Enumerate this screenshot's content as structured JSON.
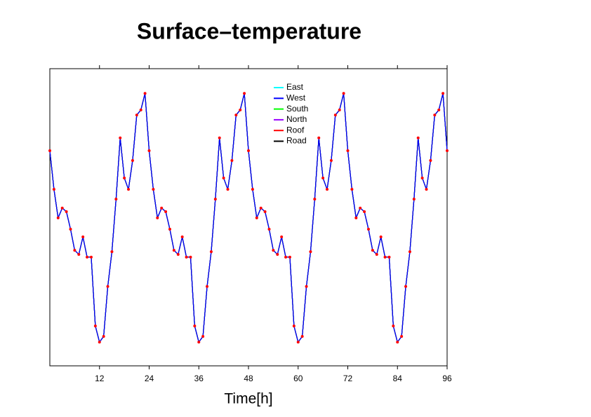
{
  "chart_data": {
    "type": "line",
    "title": "Surface–temperature",
    "x_label": "Time[h]",
    "xlim": [
      0,
      96
    ],
    "xticks": [
      12,
      24,
      36,
      48,
      60,
      72,
      84,
      96
    ],
    "ylim": [
      0,
      100
    ],
    "x": [
      0,
      1,
      2,
      3,
      4,
      5,
      6,
      7,
      8,
      9,
      10,
      11,
      12,
      13,
      14,
      15,
      16,
      17,
      18,
      19,
      20,
      21,
      22,
      23,
      24,
      25,
      26,
      27,
      28,
      29,
      30,
      31,
      32,
      33,
      34,
      35,
      36,
      37,
      38,
      39,
      40,
      41,
      42,
      43,
      44,
      45,
      46,
      47,
      48,
      49,
      50,
      51,
      52,
      53,
      54,
      55,
      56,
      57,
      58,
      59,
      60,
      61,
      62,
      63,
      64,
      65,
      66,
      67,
      68,
      69,
      70,
      71,
      72,
      73,
      74,
      75,
      76,
      77,
      78,
      79,
      80,
      81,
      82,
      83,
      84,
      85,
      86,
      87,
      88,
      89,
      90,
      91,
      92,
      93,
      94,
      95,
      96
    ],
    "series": [
      {
        "name": "East",
        "color": "#00ffff",
        "values": [
          72.4,
          59.4,
          49.8,
          53.1,
          51.9,
          46.0,
          38.9,
          37.5,
          43.4,
          36.6,
          36.6,
          13.4,
          8.0,
          9.9,
          26.7,
          38.4,
          56.1,
          76.7,
          63.2,
          59.4,
          69.1,
          84.4,
          86.1,
          91.7,
          72.4,
          59.4,
          49.8,
          53.1,
          51.9,
          46.0,
          38.9,
          37.5,
          43.4,
          36.6,
          36.6,
          13.4,
          8.0,
          9.9,
          26.7,
          38.4,
          56.1,
          76.7,
          63.2,
          59.4,
          69.1,
          84.4,
          86.1,
          91.7,
          72.4,
          59.4,
          49.8,
          53.1,
          51.9,
          46.0,
          38.9,
          37.5,
          43.4,
          36.6,
          36.6,
          13.4,
          8.0,
          9.9,
          26.7,
          38.4,
          56.1,
          76.7,
          63.2,
          59.4,
          69.1,
          84.4,
          86.1,
          91.7,
          72.4,
          59.4,
          49.8,
          53.1,
          51.9,
          46.0,
          38.9,
          37.5,
          43.4,
          36.6,
          36.6,
          13.4,
          8.0,
          9.9,
          26.7,
          38.4,
          56.1,
          76.7,
          63.2,
          59.4,
          69.1,
          84.4,
          86.1,
          91.7,
          72.4
        ]
      },
      {
        "name": "West",
        "color": "#0000ff",
        "values": [
          72.4,
          59.4,
          49.8,
          53.1,
          51.9,
          46.0,
          38.9,
          37.5,
          43.4,
          36.6,
          36.6,
          13.4,
          8.0,
          9.9,
          26.7,
          38.4,
          56.1,
          76.7,
          63.2,
          59.4,
          69.1,
          84.4,
          86.1,
          91.7,
          72.4,
          59.4,
          49.8,
          53.1,
          51.9,
          46.0,
          38.9,
          37.5,
          43.4,
          36.6,
          36.6,
          13.4,
          8.0,
          9.9,
          26.7,
          38.4,
          56.1,
          76.7,
          63.2,
          59.4,
          69.1,
          84.4,
          86.1,
          91.7,
          72.4,
          59.4,
          49.8,
          53.1,
          51.9,
          46.0,
          38.9,
          37.5,
          43.4,
          36.6,
          36.6,
          13.4,
          8.0,
          9.9,
          26.7,
          38.4,
          56.1,
          76.7,
          63.2,
          59.4,
          69.1,
          84.4,
          86.1,
          91.7,
          72.4,
          59.4,
          49.8,
          53.1,
          51.9,
          46.0,
          38.9,
          37.5,
          43.4,
          36.6,
          36.6,
          13.4,
          8.0,
          9.9,
          26.7,
          38.4,
          56.1,
          76.7,
          63.2,
          59.4,
          69.1,
          84.4,
          86.1,
          91.7,
          72.4
        ]
      },
      {
        "name": "South",
        "color": "#00ff00",
        "values": [
          72.4,
          59.4,
          49.8,
          53.1,
          51.9,
          46.0,
          38.9,
          37.5,
          43.4,
          36.6,
          36.6,
          13.4,
          8.0,
          9.9,
          26.7,
          38.4,
          56.1,
          76.7,
          63.2,
          59.4,
          69.1,
          84.4,
          86.1,
          91.7,
          72.4,
          59.4,
          49.8,
          53.1,
          51.9,
          46.0,
          38.9,
          37.5,
          43.4,
          36.6,
          36.6,
          13.4,
          8.0,
          9.9,
          26.7,
          38.4,
          56.1,
          76.7,
          63.2,
          59.4,
          69.1,
          84.4,
          86.1,
          91.7,
          72.4,
          59.4,
          49.8,
          53.1,
          51.9,
          46.0,
          38.9,
          37.5,
          43.4,
          36.6,
          36.6,
          13.4,
          8.0,
          9.9,
          26.7,
          38.4,
          56.1,
          76.7,
          63.2,
          59.4,
          69.1,
          84.4,
          86.1,
          91.7,
          72.4,
          59.4,
          49.8,
          53.1,
          51.9,
          46.0,
          38.9,
          37.5,
          43.4,
          36.6,
          36.6,
          13.4,
          8.0,
          9.9,
          26.7,
          38.4,
          56.1,
          76.7,
          63.2,
          59.4,
          69.1,
          84.4,
          86.1,
          91.7,
          72.4
        ]
      },
      {
        "name": "North",
        "color": "#9900ff",
        "values": [
          72.4,
          59.4,
          49.8,
          53.1,
          51.9,
          46.0,
          38.9,
          37.5,
          43.4,
          36.6,
          36.6,
          13.4,
          8.0,
          9.9,
          26.7,
          38.4,
          56.1,
          76.7,
          63.2,
          59.4,
          69.1,
          84.4,
          86.1,
          91.7,
          72.4,
          59.4,
          49.8,
          53.1,
          51.9,
          46.0,
          38.9,
          37.5,
          43.4,
          36.6,
          36.6,
          13.4,
          8.0,
          9.9,
          26.7,
          38.4,
          56.1,
          76.7,
          63.2,
          59.4,
          69.1,
          84.4,
          86.1,
          91.7,
          72.4,
          59.4,
          49.8,
          53.1,
          51.9,
          46.0,
          38.9,
          37.5,
          43.4,
          36.6,
          36.6,
          13.4,
          8.0,
          9.9,
          26.7,
          38.4,
          56.1,
          76.7,
          63.2,
          59.4,
          69.1,
          84.4,
          86.1,
          91.7,
          72.4,
          59.4,
          49.8,
          53.1,
          51.9,
          46.0,
          38.9,
          37.5,
          43.4,
          36.6,
          36.6,
          13.4,
          8.0,
          9.9,
          26.7,
          38.4,
          56.1,
          76.7,
          63.2,
          59.4,
          69.1,
          84.4,
          86.1,
          91.7,
          72.4
        ]
      },
      {
        "name": "Roof",
        "color": "#ff0000",
        "style": "markers",
        "values": [
          72.4,
          59.4,
          49.8,
          53.1,
          51.9,
          46.0,
          38.9,
          37.5,
          43.4,
          36.6,
          36.6,
          13.4,
          8.0,
          9.9,
          26.7,
          38.4,
          56.1,
          76.7,
          63.2,
          59.4,
          69.1,
          84.4,
          86.1,
          91.7,
          72.4,
          59.4,
          49.8,
          53.1,
          51.9,
          46.0,
          38.9,
          37.5,
          43.4,
          36.6,
          36.6,
          13.4,
          8.0,
          9.9,
          26.7,
          38.4,
          56.1,
          76.7,
          63.2,
          59.4,
          69.1,
          84.4,
          86.1,
          91.7,
          72.4,
          59.4,
          49.8,
          53.1,
          51.9,
          46.0,
          38.9,
          37.5,
          43.4,
          36.6,
          36.6,
          13.4,
          8.0,
          9.9,
          26.7,
          38.4,
          56.1,
          76.7,
          63.2,
          59.4,
          69.1,
          84.4,
          86.1,
          91.7,
          72.4,
          59.4,
          49.8,
          53.1,
          51.9,
          46.0,
          38.9,
          37.5,
          43.4,
          36.6,
          36.6,
          13.4,
          8.0,
          9.9,
          26.7,
          38.4,
          56.1,
          76.7,
          63.2,
          59.4,
          69.1,
          84.4,
          86.1,
          91.7,
          72.4
        ]
      },
      {
        "name": "Road",
        "color": "#000000",
        "values": [
          72.4,
          59.4,
          49.8,
          53.1,
          51.9,
          46.0,
          38.9,
          37.5,
          43.4,
          36.6,
          36.6,
          13.4,
          8.0,
          9.9,
          26.7,
          38.4,
          56.1,
          76.7,
          63.2,
          59.4,
          69.1,
          84.4,
          86.1,
          91.7,
          72.4,
          59.4,
          49.8,
          53.1,
          51.9,
          46.0,
          38.9,
          37.5,
          43.4,
          36.6,
          36.6,
          13.4,
          8.0,
          9.9,
          26.7,
          38.4,
          56.1,
          76.7,
          63.2,
          59.4,
          69.1,
          84.4,
          86.1,
          91.7,
          72.4,
          59.4,
          49.8,
          53.1,
          51.9,
          46.0,
          38.9,
          37.5,
          43.4,
          36.6,
          36.6,
          13.4,
          8.0,
          9.9,
          26.7,
          38.4,
          56.1,
          76.7,
          63.2,
          59.4,
          69.1,
          84.4,
          86.1,
          91.7,
          72.4,
          59.4,
          49.8,
          53.1,
          51.9,
          46.0,
          38.9,
          37.5,
          43.4,
          36.6,
          36.6,
          13.4,
          8.0,
          9.9,
          26.7,
          38.4,
          56.1,
          76.7,
          63.2,
          59.4,
          69.1,
          84.4,
          86.1,
          91.7,
          72.4
        ]
      }
    ]
  }
}
